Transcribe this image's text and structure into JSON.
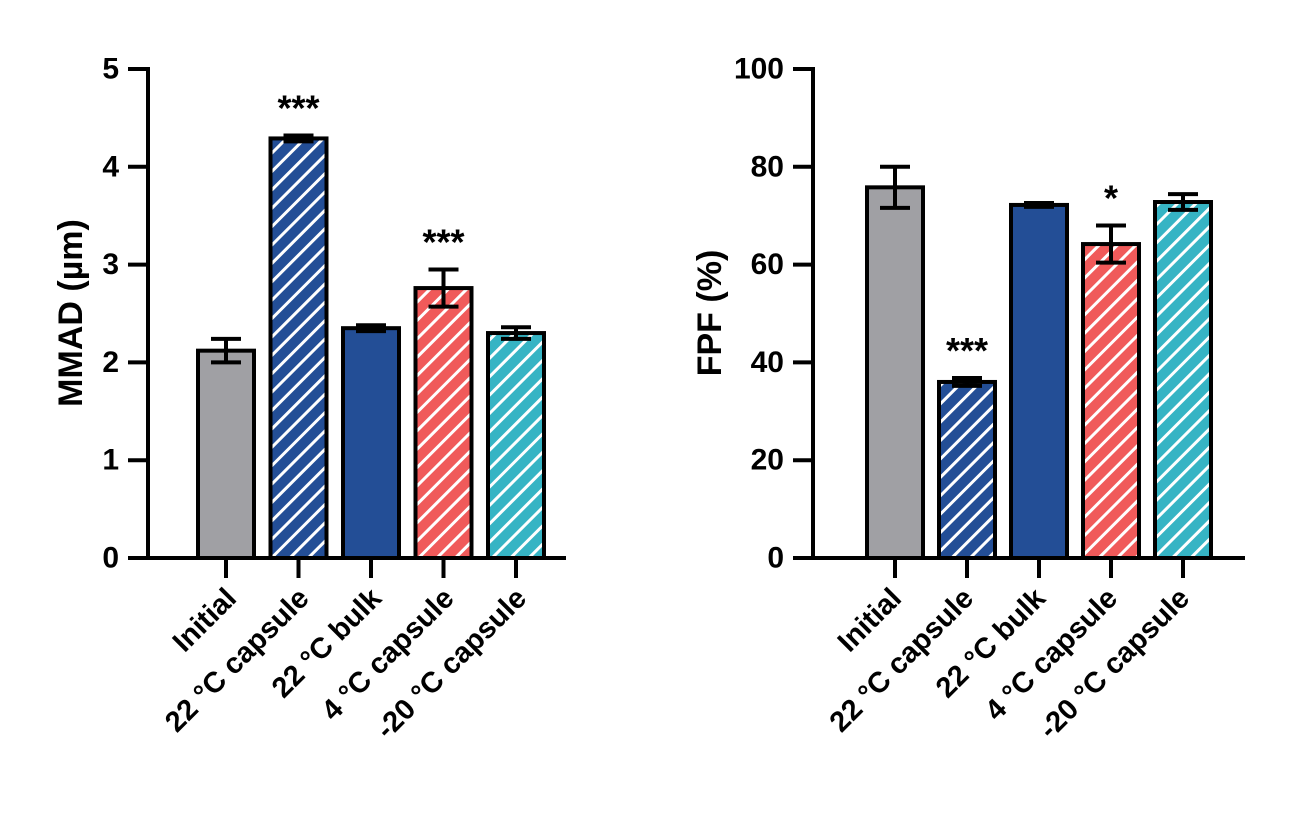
{
  "colors": {
    "gray": "#a0a0a4",
    "navy": "#234e96",
    "red": "#f05a5a",
    "teal": "#36b4c4",
    "stroke": "#000000",
    "hatch": "#ffffff"
  },
  "chart_data": [
    {
      "type": "bar",
      "title": "",
      "xlabel": "",
      "ylabel": "MMAD (µm)",
      "ylim": [
        0,
        5
      ],
      "yticks": [
        0,
        1,
        2,
        3,
        4,
        5
      ],
      "grid": false,
      "categories": [
        "Initial",
        "22 °C capsule",
        "22 °C bulk",
        "4 °C capsule",
        "-20 °C capsule"
      ],
      "values": [
        2.12,
        4.29,
        2.35,
        2.76,
        2.3
      ],
      "errors": [
        0.12,
        0.03,
        0.03,
        0.19,
        0.06
      ],
      "fill_colors": [
        "gray",
        "navy",
        "navy",
        "red",
        "teal"
      ],
      "hatched": [
        false,
        true,
        false,
        true,
        true
      ],
      "annotations": [
        "",
        "***",
        "",
        "***",
        ""
      ]
    },
    {
      "type": "bar",
      "title": "",
      "xlabel": "",
      "ylabel": "FPF (%)",
      "ylim": [
        0,
        100
      ],
      "yticks": [
        0,
        20,
        40,
        60,
        80,
        100
      ],
      "grid": false,
      "categories": [
        "Initial",
        "22 °C capsule",
        "22 °C bulk",
        "4 °C capsule",
        "-20 °C capsule"
      ],
      "values": [
        75.8,
        36.0,
        72.2,
        64.2,
        72.8
      ],
      "errors": [
        4.2,
        0.8,
        0.4,
        3.8,
        1.6
      ],
      "fill_colors": [
        "gray",
        "navy",
        "navy",
        "red",
        "teal"
      ],
      "hatched": [
        false,
        true,
        false,
        true,
        true
      ],
      "annotations": [
        "",
        "***",
        "",
        "*",
        ""
      ]
    }
  ]
}
